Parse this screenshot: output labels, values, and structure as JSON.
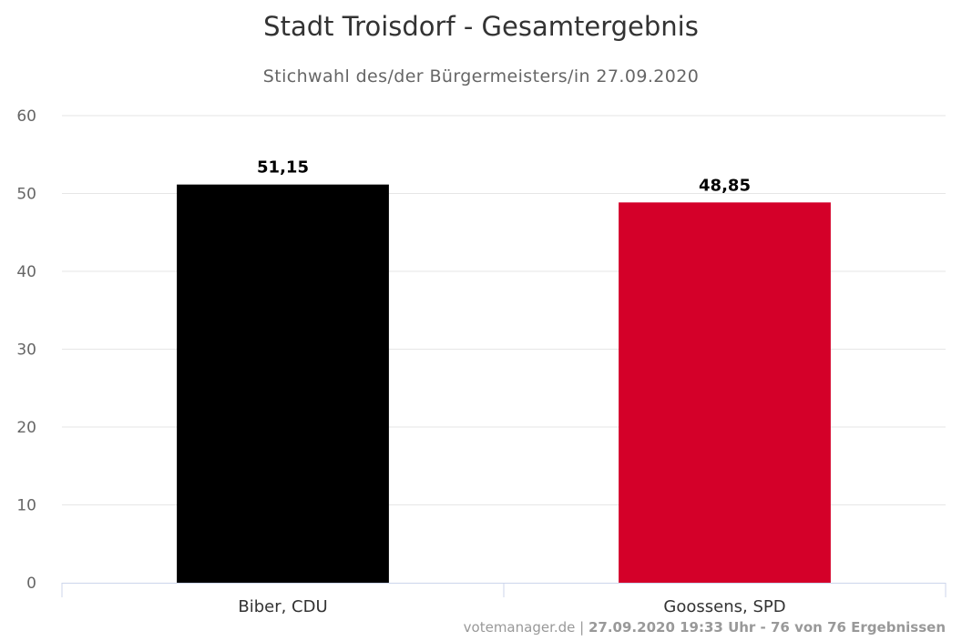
{
  "chart_data": {
    "type": "bar",
    "title": "Stadt Troisdorf - Gesamtergebnis",
    "subtitle": "Stichwahl des/der Bürgermeisters/in 27.09.2020",
    "categories": [
      "Biber, CDU",
      "Goossens, SPD"
    ],
    "values": [
      51.15,
      48.85
    ],
    "data_labels": [
      "51,15",
      "48,85"
    ],
    "colors": [
      "#000000",
      "#d40029"
    ],
    "ylim": [
      0,
      60
    ],
    "yticks": [
      0,
      10,
      20,
      30,
      40,
      50,
      60
    ],
    "grid": true,
    "legend": "none"
  },
  "footer": {
    "source": "votemanager.de",
    "separator": " | ",
    "status": "27.09.2020 19:33 Uhr - 76 von 76 Ergebnissen"
  }
}
